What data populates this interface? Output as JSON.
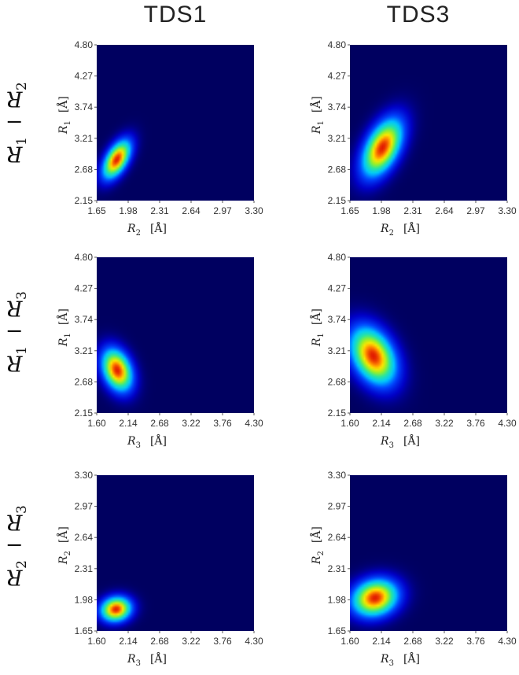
{
  "column_titles": [
    "TDS1",
    "TDS3"
  ],
  "row_labels": [
    {
      "a": "R",
      "a_sub": "1",
      "op": "−",
      "b": "R",
      "b_sub": "2"
    },
    {
      "a": "R",
      "a_sub": "1",
      "op": "−",
      "b": "R",
      "b_sub": "3"
    },
    {
      "a": "R",
      "a_sub": "2",
      "op": "−",
      "b": "R",
      "b_sub": "3"
    }
  ],
  "chart_data": [
    {
      "type": "heatmap",
      "title": "TDS1",
      "row": "R1 − R2",
      "xlabel": {
        "var": "R",
        "sub": "2",
        "unit": "[Å]"
      },
      "ylabel": {
        "var": "R",
        "sub": "1",
        "unit": "[Å]"
      },
      "xlim": [
        1.65,
        3.3
      ],
      "ylim": [
        2.15,
        4.8
      ],
      "xticks": [
        "1.65",
        "1.98",
        "2.31",
        "2.64",
        "2.97",
        "3.30"
      ],
      "yticks": [
        "2.15",
        "2.68",
        "3.21",
        "3.74",
        "4.27",
        "4.80"
      ],
      "peak": {
        "x": 1.86,
        "y": 2.85
      },
      "spread": {
        "x": 0.09,
        "y": 0.2,
        "rho": 0.55
      }
    },
    {
      "type": "heatmap",
      "title": "TDS3",
      "row": "R1 − R2",
      "xlabel": {
        "var": "R",
        "sub": "2",
        "unit": "[Å]"
      },
      "ylabel": {
        "var": "R",
        "sub": "1",
        "unit": "[Å]"
      },
      "xlim": [
        1.65,
        3.3
      ],
      "ylim": [
        2.15,
        4.8
      ],
      "xticks": [
        "1.65",
        "1.98",
        "2.31",
        "2.64",
        "2.97",
        "3.30"
      ],
      "yticks": [
        "2.15",
        "2.68",
        "3.21",
        "3.74",
        "4.27",
        "4.80"
      ],
      "peak": {
        "x": 1.99,
        "y": 3.05
      },
      "spread": {
        "x": 0.13,
        "y": 0.3,
        "rho": 0.5
      }
    },
    {
      "type": "heatmap",
      "title": "TDS1",
      "row": "R1 − R3",
      "xlabel": {
        "var": "R",
        "sub": "3",
        "unit": "[Å]"
      },
      "ylabel": {
        "var": "R",
        "sub": "1",
        "unit": "[Å]"
      },
      "xlim": [
        1.6,
        4.3
      ],
      "ylim": [
        2.15,
        4.8
      ],
      "xticks": [
        "1.60",
        "2.14",
        "2.68",
        "3.22",
        "3.76",
        "4.30"
      ],
      "yticks": [
        "2.15",
        "2.68",
        "3.21",
        "3.74",
        "4.27",
        "4.80"
      ],
      "peak": {
        "x": 1.95,
        "y": 2.88
      },
      "spread": {
        "x": 0.16,
        "y": 0.22,
        "rho": -0.3
      }
    },
    {
      "type": "heatmap",
      "title": "TDS3",
      "row": "R1 − R3",
      "xlabel": {
        "var": "R",
        "sub": "3",
        "unit": "[Å]"
      },
      "ylabel": {
        "var": "R",
        "sub": "1",
        "unit": "[Å]"
      },
      "xlim": [
        1.6,
        4.3
      ],
      "ylim": [
        2.15,
        4.8
      ],
      "xticks": [
        "1.60",
        "2.14",
        "2.68",
        "3.22",
        "3.76",
        "4.30"
      ],
      "yticks": [
        "2.15",
        "2.68",
        "3.21",
        "3.74",
        "4.27",
        "4.80"
      ],
      "peak": {
        "x": 2.0,
        "y": 3.12
      },
      "spread": {
        "x": 0.24,
        "y": 0.3,
        "rho": -0.35
      }
    },
    {
      "type": "heatmap",
      "title": "TDS1",
      "row": "R2 − R3",
      "xlabel": {
        "var": "R",
        "sub": "3",
        "unit": "[Å]"
      },
      "ylabel": {
        "var": "R",
        "sub": "2",
        "unit": "[Å]"
      },
      "xlim": [
        1.6,
        4.3
      ],
      "ylim": [
        1.65,
        3.3
      ],
      "xticks": [
        "1.60",
        "2.14",
        "2.68",
        "3.22",
        "3.76",
        "4.30"
      ],
      "yticks": [
        "1.65",
        "1.98",
        "2.31",
        "2.64",
        "2.97",
        "3.30"
      ],
      "peak": {
        "x": 1.93,
        "y": 1.88
      },
      "spread": {
        "x": 0.16,
        "y": 0.08,
        "rho": 0.1
      }
    },
    {
      "type": "heatmap",
      "title": "TDS3",
      "row": "R2 − R3",
      "xlabel": {
        "var": "R",
        "sub": "3",
        "unit": "[Å]"
      },
      "ylabel": {
        "var": "R",
        "sub": "2",
        "unit": "[Å]"
      },
      "xlim": [
        1.6,
        4.3
      ],
      "ylim": [
        1.65,
        3.3
      ],
      "xticks": [
        "1.60",
        "2.14",
        "2.68",
        "3.22",
        "3.76",
        "4.30"
      ],
      "yticks": [
        "1.65",
        "1.98",
        "2.31",
        "2.64",
        "2.97",
        "3.30"
      ],
      "peak": {
        "x": 2.03,
        "y": 2.0
      },
      "spread": {
        "x": 0.24,
        "y": 0.12,
        "rho": 0.15
      }
    }
  ]
}
